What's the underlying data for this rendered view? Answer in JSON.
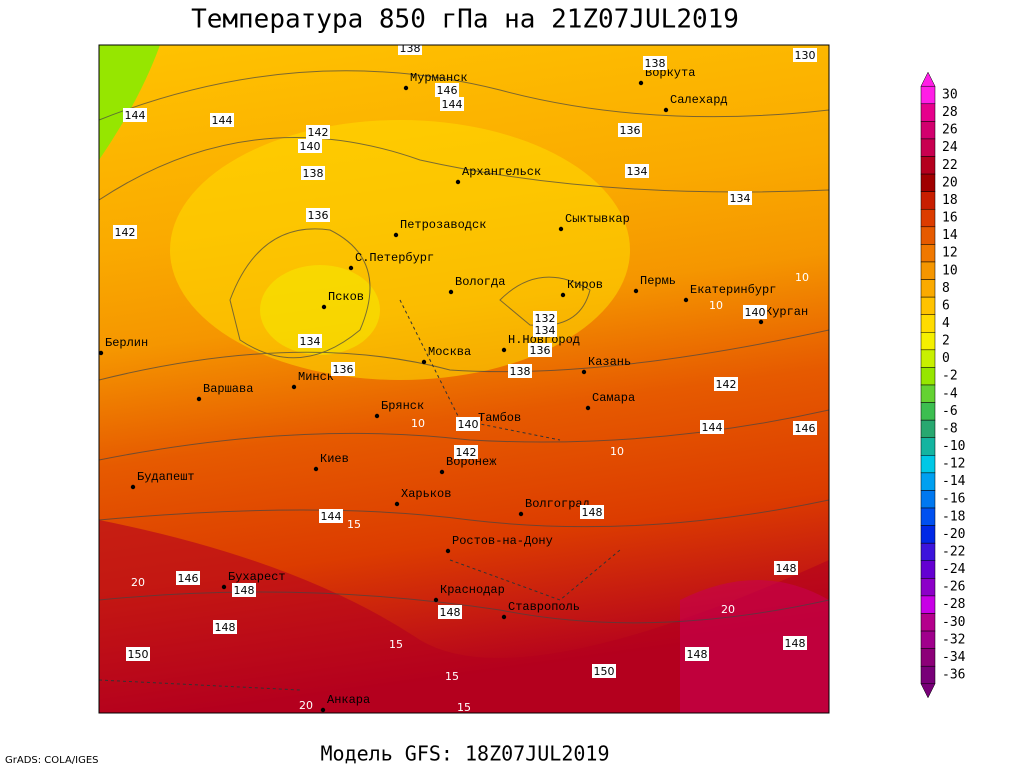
{
  "header": {
    "title": "Температура 850 гПа на 21Z07JUL2019"
  },
  "footer": {
    "model": "Модель GFS: 18Z07JUL2019",
    "credit": "GrADS: COLA/IGES"
  },
  "colorbar": [
    {
      "value": 30,
      "color": "#ff1ee6"
    },
    {
      "value": 28,
      "color": "#e6008c"
    },
    {
      "value": 26,
      "color": "#d2006e"
    },
    {
      "value": 24,
      "color": "#c80050"
    },
    {
      "value": 22,
      "color": "#b4001e"
    },
    {
      "value": 20,
      "color": "#a00000"
    },
    {
      "value": 18,
      "color": "#c81e00"
    },
    {
      "value": 16,
      "color": "#dc3c00"
    },
    {
      "value": 14,
      "color": "#e65a00"
    },
    {
      "value": 12,
      "color": "#f07800"
    },
    {
      "value": 10,
      "color": "#f59600"
    },
    {
      "value": 8,
      "color": "#faaa00"
    },
    {
      "value": 6,
      "color": "#ffc300"
    },
    {
      "value": 4,
      "color": "#ffdc00"
    },
    {
      "value": 2,
      "color": "#f5f000"
    },
    {
      "value": 0,
      "color": "#c8f000"
    },
    {
      "value": -2,
      "color": "#96e600"
    },
    {
      "value": -4,
      "color": "#64d232"
    },
    {
      "value": -6,
      "color": "#3cbe50"
    },
    {
      "value": -8,
      "color": "#28a870"
    },
    {
      "value": -10,
      "color": "#14b4a0"
    },
    {
      "value": -12,
      "color": "#00c8e6"
    },
    {
      "value": -14,
      "color": "#00a0f0"
    },
    {
      "value": -16,
      "color": "#0078f0"
    },
    {
      "value": -18,
      "color": "#0050f0"
    },
    {
      "value": -20,
      "color": "#0028e6"
    },
    {
      "value": -22,
      "color": "#3c14dc"
    },
    {
      "value": -24,
      "color": "#6400d2"
    },
    {
      "value": -26,
      "color": "#8c00c8"
    },
    {
      "value": -28,
      "color": "#c800e6"
    },
    {
      "value": -30,
      "color": "#b4008c"
    },
    {
      "value": -32,
      "color": "#a0008c"
    },
    {
      "value": -34,
      "color": "#8c0078"
    },
    {
      "value": -36,
      "color": "#780078"
    }
  ],
  "cities": [
    "Мурманск",
    "Воркута",
    "Салехард",
    "Архангельск",
    "Сыктывкар",
    "Петрозаводск",
    "С.Петербург",
    "Вологда",
    "Киров",
    "Пермь",
    "Екатеринбург",
    "Курган",
    "Псков",
    "Берлин",
    "Н.Новгород",
    "Москва",
    "Казань",
    "Минск",
    "Варшава",
    "Самара",
    "Брянск",
    "Тамбов",
    "Киев",
    "Воронеж",
    "Будапешт",
    "Харьков",
    "Волгоград",
    "Ростов-на-Дону",
    "Бухарест",
    "Краснодар",
    "Ставрополь",
    "Анкара"
  ],
  "height_labels": [
    138,
    138,
    130,
    146,
    144,
    144,
    144,
    142,
    140,
    136,
    138,
    134,
    134,
    136,
    142,
    140,
    132,
    134,
    136,
    134,
    136,
    138,
    142,
    144,
    146,
    140,
    142,
    148,
    144,
    146,
    148,
    148,
    150,
    148,
    148,
    148,
    148,
    150
  ],
  "temperature_labels": [
    10,
    10,
    10,
    10,
    15,
    15,
    15,
    15,
    20,
    20,
    20
  ]
}
